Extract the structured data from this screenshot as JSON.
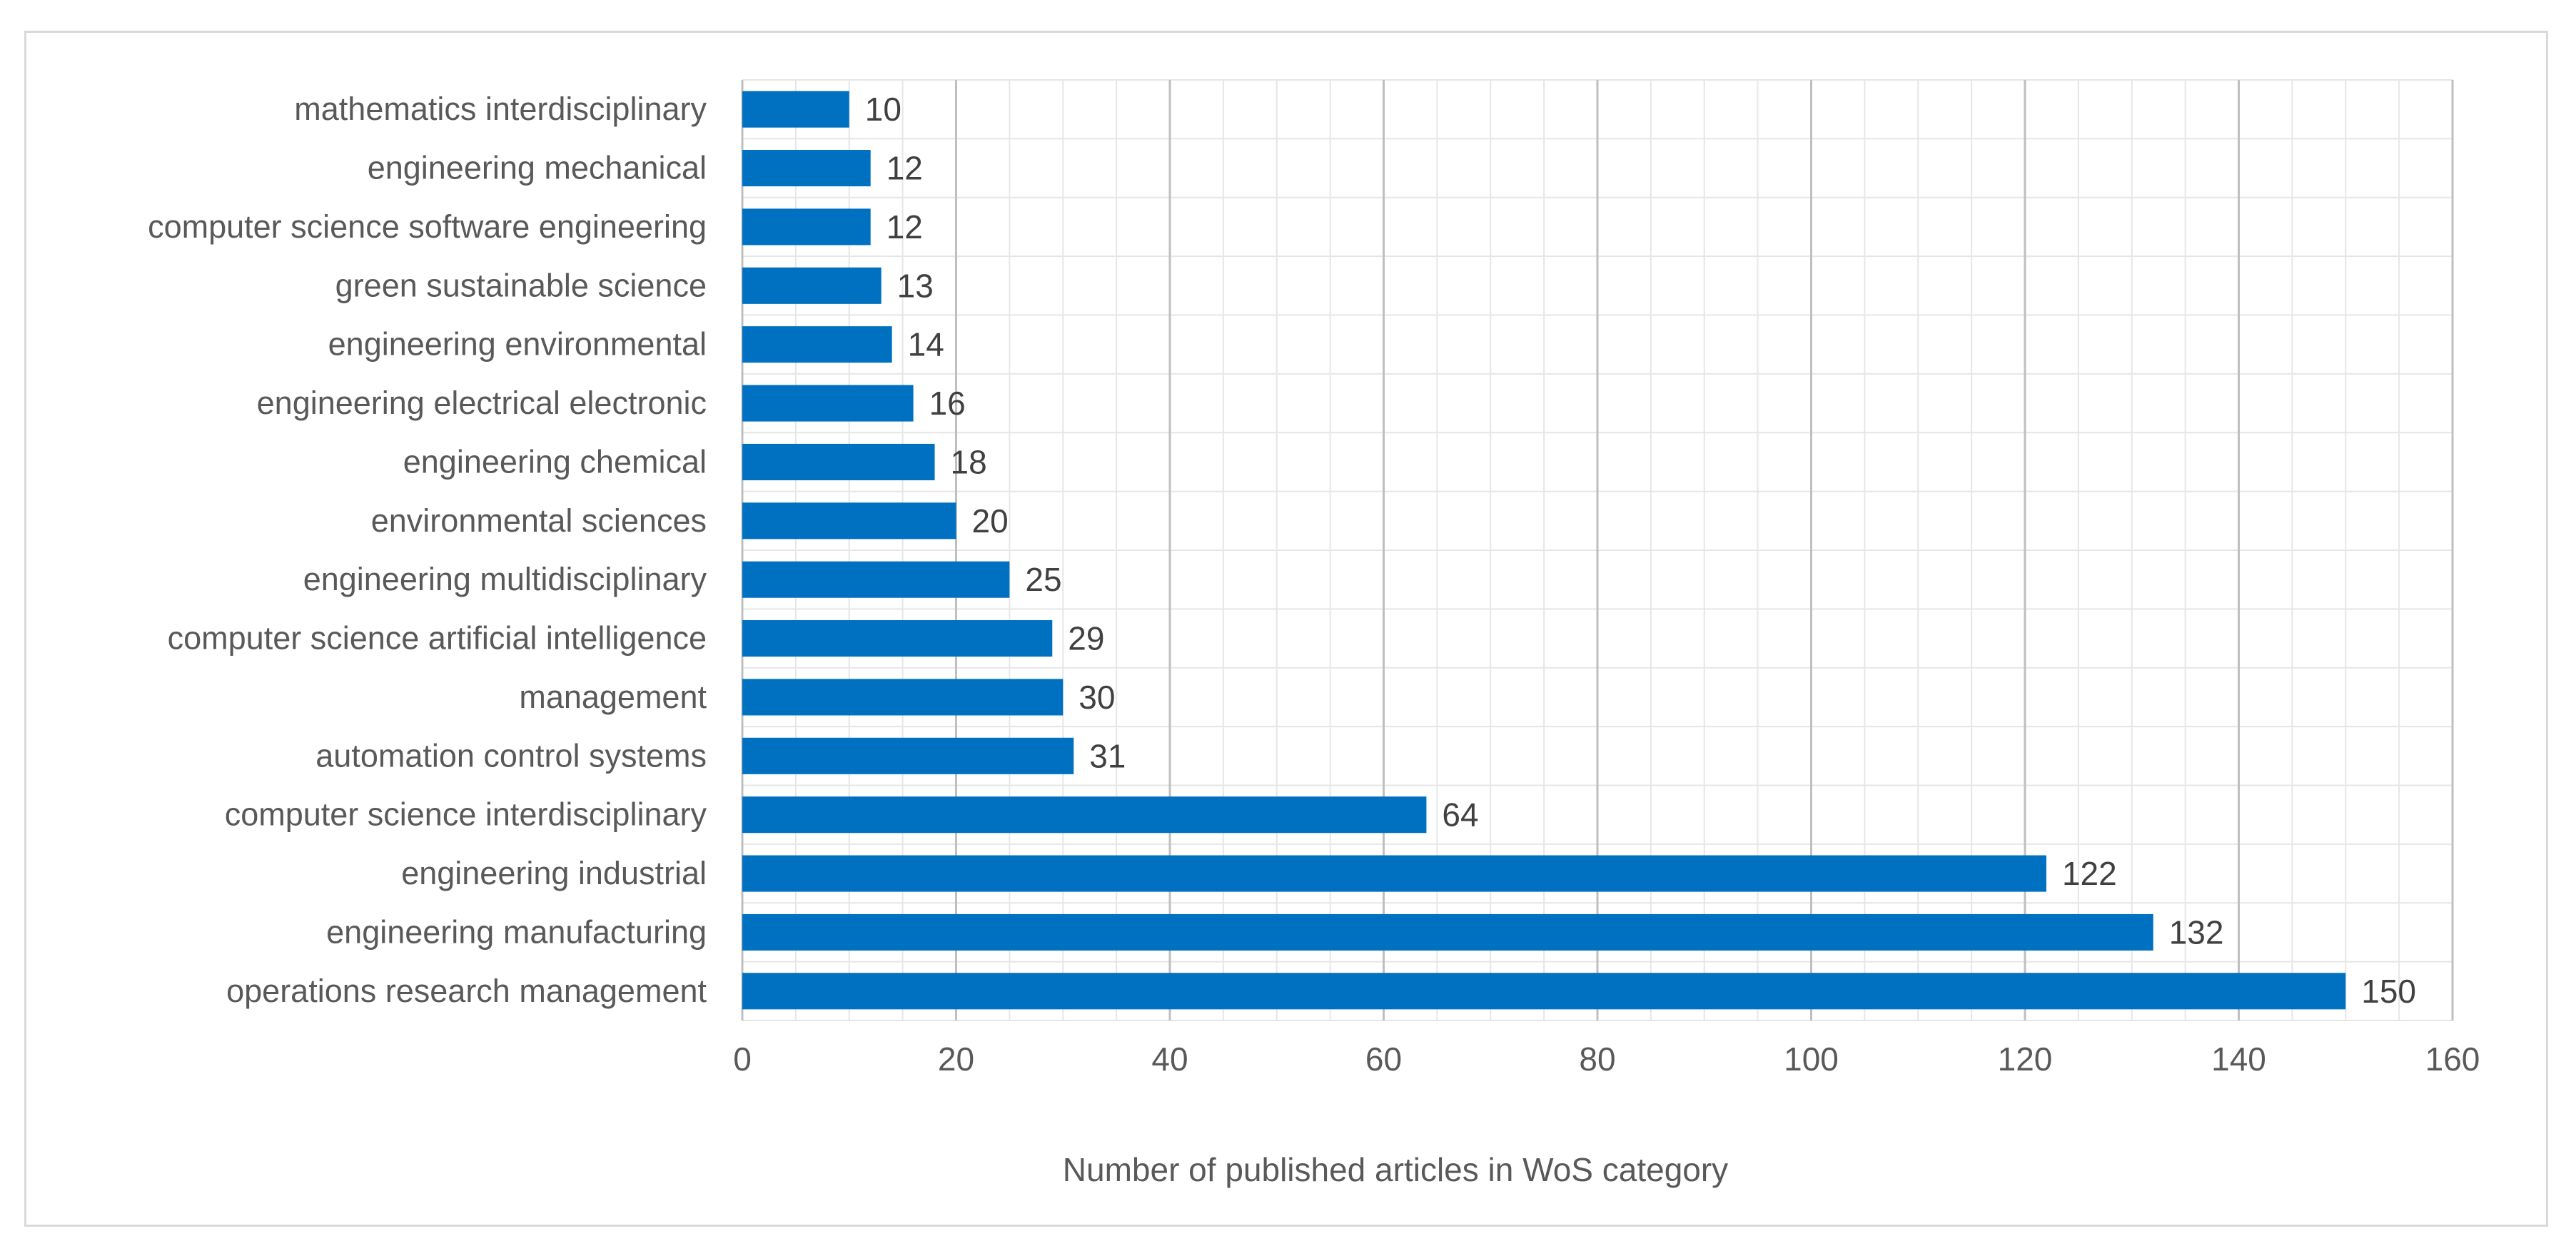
{
  "chart_data": {
    "type": "bar",
    "orientation": "horizontal",
    "categories": [
      "operations research management",
      "engineering manufacturing",
      "engineering industrial",
      "computer science interdisciplinary",
      "automation control systems",
      "management",
      "computer science artificial intelligence",
      "engineering multidisciplinary",
      "environmental sciences",
      "engineering chemical",
      "engineering electrical electronic",
      "engineering environmental",
      "green sustainable science",
      "computer science software engineering",
      "engineering mechanical",
      "mathematics interdisciplinary"
    ],
    "values": [
      150,
      132,
      122,
      64,
      31,
      30,
      29,
      25,
      20,
      18,
      16,
      14,
      13,
      12,
      12,
      10
    ],
    "xlabel": "Number of published articles in  WoS category",
    "ylabel": "",
    "xlim": [
      0,
      160
    ],
    "xticks": [
      0,
      20,
      40,
      60,
      80,
      100,
      120,
      140,
      160
    ],
    "grid": true,
    "legend": "none",
    "bar_color": "#0070c0"
  }
}
